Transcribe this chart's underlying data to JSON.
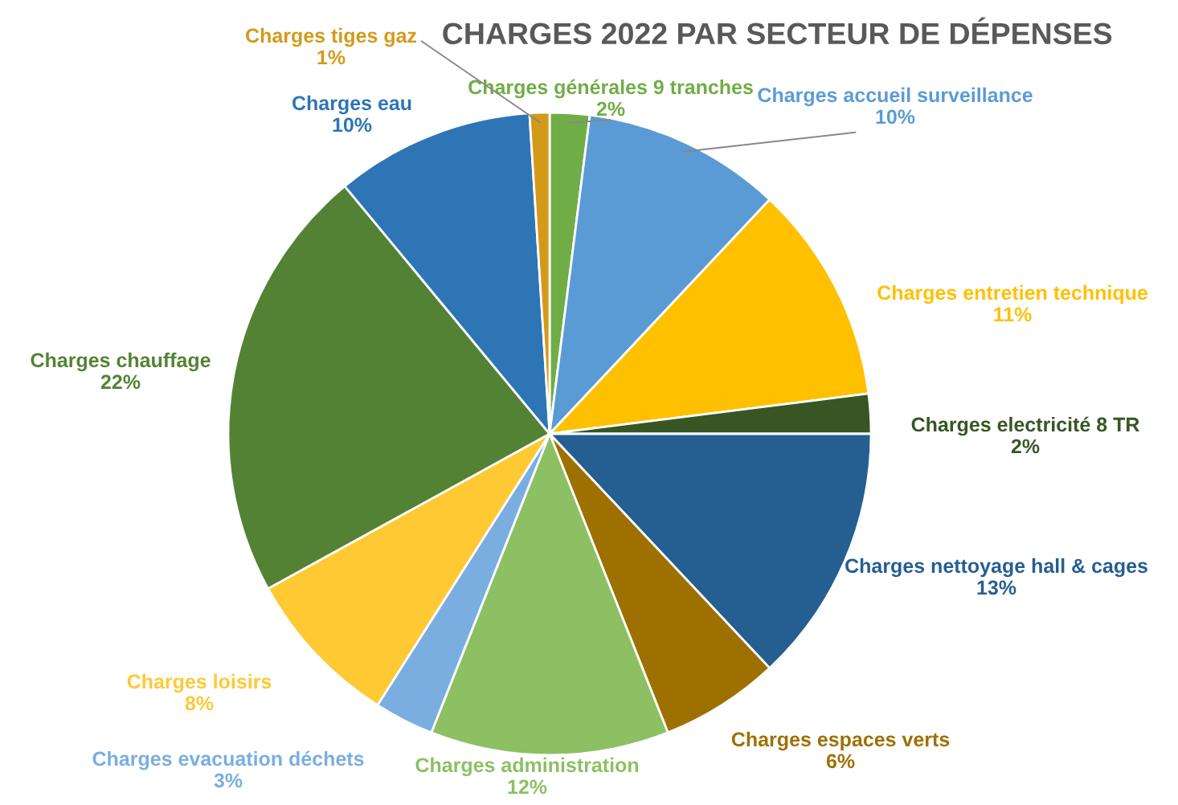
{
  "chart_data": {
    "type": "pie",
    "title": "CHARGES 2022 PAR SECTEUR DE DÉPENSES",
    "categories": [
      "Charges générales 9 tranches",
      "Charges accueil surveillance",
      "Charges entretien technique",
      "Charges electricité 8 TR",
      "Charges nettoyage hall & cages",
      "Charges espaces verts",
      "Charges administration",
      "Charges evacuation déchets",
      "Charges loisirs",
      "Charges chauffage",
      "Charges eau",
      "Charges tiges gaz"
    ],
    "values": [
      2,
      10,
      11,
      2,
      13,
      6,
      12,
      3,
      8,
      22,
      10,
      1
    ],
    "value_labels": [
      "2%",
      "10%",
      "11%",
      "2%",
      "13%",
      "6%",
      "12%",
      "3%",
      "8%",
      "22%",
      "10%",
      "1%"
    ],
    "colors": [
      "#70ad47",
      "#5b9bd5",
      "#ffc000",
      "#375623",
      "#255e91",
      "#9e7000",
      "#8cc063",
      "#7aaee0",
      "#ffc934",
      "#548235",
      "#2e75b6",
      "#d39a1a"
    ],
    "legend": false
  }
}
